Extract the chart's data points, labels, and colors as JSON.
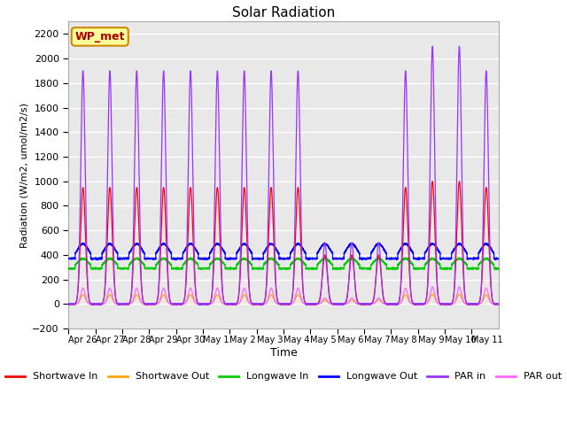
{
  "title": "Solar Radiation",
  "xlabel": "Time",
  "ylabel": "Radiation (W/m2, umol/m2/s)",
  "ylim": [
    -200,
    2300
  ],
  "yticks": [
    -200,
    0,
    200,
    400,
    600,
    800,
    1000,
    1200,
    1400,
    1600,
    1800,
    2000,
    2200
  ],
  "date_labels": [
    "Apr 26",
    "Apr 27",
    "Apr 28",
    "Apr 29",
    "Apr 30",
    "May 1",
    "May 2",
    "May 3",
    "May 4",
    "May 5",
    "May 6",
    "May 7",
    "May 8",
    "May 9",
    "May 10",
    "May 11"
  ],
  "legend_label": "WP_met",
  "legend_bg": "#FFFF99",
  "legend_border": "#CC8800",
  "series": {
    "shortwave_in": {
      "label": "Shortwave In",
      "color": "#FF0000"
    },
    "shortwave_out": {
      "label": "Shortwave Out",
      "color": "#FFA500"
    },
    "longwave_in": {
      "label": "Longwave In",
      "color": "#00CC00"
    },
    "longwave_out": {
      "label": "Longwave Out",
      "color": "#0000FF"
    },
    "par_in": {
      "label": "PAR in",
      "color": "#9933FF"
    },
    "par_out": {
      "label": "PAR out",
      "color": "#FF66FF"
    }
  },
  "plot_bg": "#E8E8E8",
  "grid_color": "#FFFFFF",
  "n_days": 16,
  "shortwave_in_peak": 950,
  "longwave_in_base": 290,
  "longwave_out_base": 370,
  "par_in_peak": 1900,
  "par_out_peak": 130
}
